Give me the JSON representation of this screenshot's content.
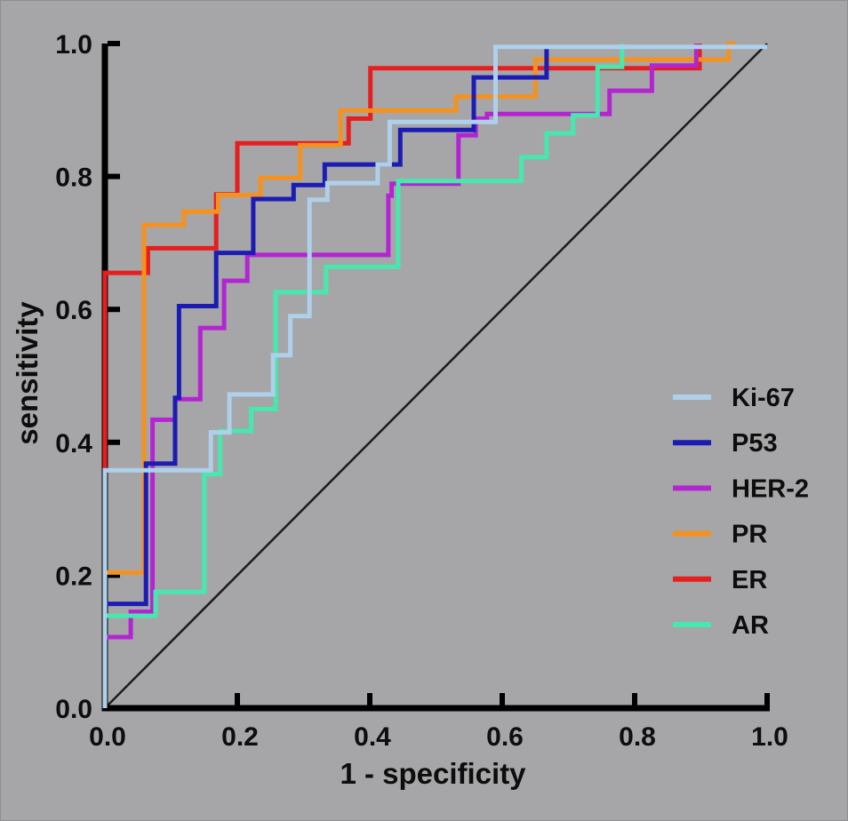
{
  "figure": {
    "type_label": "ROC curve figure",
    "background_color": "#a6a6a8",
    "axis_color": "#000000",
    "diagonal_color": "#1c1c1c",
    "text_color": "#0d0d0d"
  },
  "chart_data": {
    "type": "line",
    "subtype": "roc-step-curves",
    "title": "",
    "xlabel": "1 - specificity",
    "ylabel": "sensitivity",
    "xlim": [
      0,
      1
    ],
    "ylim": [
      0,
      1
    ],
    "xticks": [
      "0.0",
      "0.2",
      "0.4",
      "0.6",
      "0.8",
      "1.0"
    ],
    "yticks": [
      "0.0",
      "0.2",
      "0.4",
      "0.6",
      "0.8",
      "1.0"
    ],
    "grid": false,
    "legend_position": "right-middle",
    "reference_diagonal": {
      "from": [
        0,
        0
      ],
      "to": [
        1,
        1
      ]
    },
    "series": [
      {
        "name": "Ki-67",
        "color": "#aed0ea",
        "points": [
          [
            0,
            0
          ],
          [
            0,
            0.358
          ],
          [
            0.16,
            0.358
          ],
          [
            0.16,
            0.415
          ],
          [
            0.188,
            0.415
          ],
          [
            0.188,
            0.472
          ],
          [
            0.254,
            0.472
          ],
          [
            0.254,
            0.531
          ],
          [
            0.28,
            0.531
          ],
          [
            0.28,
            0.59
          ],
          [
            0.309,
            0.59
          ],
          [
            0.309,
            0.765
          ],
          [
            0.336,
            0.765
          ],
          [
            0.336,
            0.79
          ],
          [
            0.412,
            0.79
          ],
          [
            0.412,
            0.818
          ],
          [
            0.43,
            0.818
          ],
          [
            0.43,
            0.882
          ],
          [
            0.59,
            0.882
          ],
          [
            0.59,
            0.995
          ],
          [
            1.0,
            0.995
          ]
        ]
      },
      {
        "name": "P53",
        "color": "#1c1cb4",
        "points": [
          [
            0,
            0
          ],
          [
            0,
            0.157
          ],
          [
            0.062,
            0.157
          ],
          [
            0.062,
            0.368
          ],
          [
            0.106,
            0.368
          ],
          [
            0.106,
            0.467
          ],
          [
            0.112,
            0.467
          ],
          [
            0.112,
            0.605
          ],
          [
            0.168,
            0.605
          ],
          [
            0.168,
            0.685
          ],
          [
            0.224,
            0.685
          ],
          [
            0.224,
            0.766
          ],
          [
            0.285,
            0.766
          ],
          [
            0.285,
            0.787
          ],
          [
            0.332,
            0.787
          ],
          [
            0.332,
            0.818
          ],
          [
            0.446,
            0.818
          ],
          [
            0.446,
            0.87
          ],
          [
            0.557,
            0.87
          ],
          [
            0.557,
            0.949
          ],
          [
            0.667,
            0.949
          ],
          [
            0.667,
            0.995
          ]
        ]
      },
      {
        "name": "HER-2",
        "color": "#b425d2",
        "points": [
          [
            0,
            0
          ],
          [
            0,
            0.107
          ],
          [
            0.039,
            0.107
          ],
          [
            0.039,
            0.145
          ],
          [
            0.072,
            0.145
          ],
          [
            0.072,
            0.434
          ],
          [
            0.106,
            0.434
          ],
          [
            0.106,
            0.465
          ],
          [
            0.144,
            0.465
          ],
          [
            0.144,
            0.572
          ],
          [
            0.18,
            0.572
          ],
          [
            0.18,
            0.643
          ],
          [
            0.215,
            0.643
          ],
          [
            0.215,
            0.682
          ],
          [
            0.428,
            0.682
          ],
          [
            0.428,
            0.771
          ],
          [
            0.433,
            0.771
          ],
          [
            0.433,
            0.789
          ],
          [
            0.534,
            0.789
          ],
          [
            0.534,
            0.862
          ],
          [
            0.56,
            0.862
          ],
          [
            0.56,
            0.887
          ],
          [
            0.577,
            0.887
          ],
          [
            0.577,
            0.894
          ],
          [
            0.762,
            0.894
          ],
          [
            0.762,
            0.929
          ],
          [
            0.826,
            0.929
          ],
          [
            0.826,
            0.967
          ],
          [
            0.893,
            0.967
          ],
          [
            0.893,
            1.0
          ]
        ]
      },
      {
        "name": "PR",
        "color": "#f5911e",
        "points": [
          [
            0,
            0
          ],
          [
            0,
            0.204
          ],
          [
            0.059,
            0.204
          ],
          [
            0.059,
            0.727
          ],
          [
            0.119,
            0.727
          ],
          [
            0.119,
            0.747
          ],
          [
            0.171,
            0.747
          ],
          [
            0.171,
            0.772
          ],
          [
            0.235,
            0.772
          ],
          [
            0.235,
            0.798
          ],
          [
            0.295,
            0.798
          ],
          [
            0.295,
            0.847
          ],
          [
            0.356,
            0.847
          ],
          [
            0.356,
            0.899
          ],
          [
            0.53,
            0.899
          ],
          [
            0.53,
            0.92
          ],
          [
            0.65,
            0.92
          ],
          [
            0.65,
            0.976
          ],
          [
            0.942,
            0.976
          ],
          [
            0.942,
            1.0
          ],
          [
            0.952,
            1.0
          ]
        ]
      },
      {
        "name": "ER",
        "color": "#e61e1e",
        "points": [
          [
            0,
            0
          ],
          [
            0,
            0.655
          ],
          [
            0.065,
            0.655
          ],
          [
            0.065,
            0.692
          ],
          [
            0.168,
            0.692
          ],
          [
            0.168,
            0.773
          ],
          [
            0.2,
            0.773
          ],
          [
            0.2,
            0.85
          ],
          [
            0.368,
            0.85
          ],
          [
            0.368,
            0.887
          ],
          [
            0.401,
            0.887
          ],
          [
            0.401,
            0.963
          ],
          [
            0.898,
            0.963
          ],
          [
            0.898,
            1.0
          ]
        ]
      },
      {
        "name": "AR",
        "color": "#46e8ae",
        "points": [
          [
            0,
            0
          ],
          [
            0,
            0.139
          ],
          [
            0.0765,
            0.139
          ],
          [
            0.0765,
            0.175
          ],
          [
            0.15,
            0.175
          ],
          [
            0.15,
            0.352
          ],
          [
            0.174,
            0.352
          ],
          [
            0.174,
            0.417
          ],
          [
            0.221,
            0.417
          ],
          [
            0.221,
            0.45
          ],
          [
            0.258,
            0.45
          ],
          [
            0.258,
            0.626
          ],
          [
            0.334,
            0.626
          ],
          [
            0.334,
            0.664
          ],
          [
            0.443,
            0.664
          ],
          [
            0.443,
            0.793
          ],
          [
            0.629,
            0.793
          ],
          [
            0.629,
            0.829
          ],
          [
            0.667,
            0.829
          ],
          [
            0.667,
            0.865
          ],
          [
            0.707,
            0.865
          ],
          [
            0.707,
            0.892
          ],
          [
            0.744,
            0.892
          ],
          [
            0.744,
            0.965
          ],
          [
            0.781,
            0.965
          ],
          [
            0.781,
            1.0
          ]
        ]
      }
    ],
    "draw_order": [
      "ER",
      "PR",
      "HER-2",
      "P53",
      "AR",
      "Ki-67"
    ],
    "legend": [
      {
        "label": "Ki-67",
        "color": "#aed0ea"
      },
      {
        "label": "P53",
        "color": "#1c1cb4"
      },
      {
        "label": "HER-2",
        "color": "#b425d2"
      },
      {
        "label": "PR",
        "color": "#f5911e"
      },
      {
        "label": "ER",
        "color": "#e61e1e"
      },
      {
        "label": "AR",
        "color": "#46e8ae"
      }
    ]
  }
}
